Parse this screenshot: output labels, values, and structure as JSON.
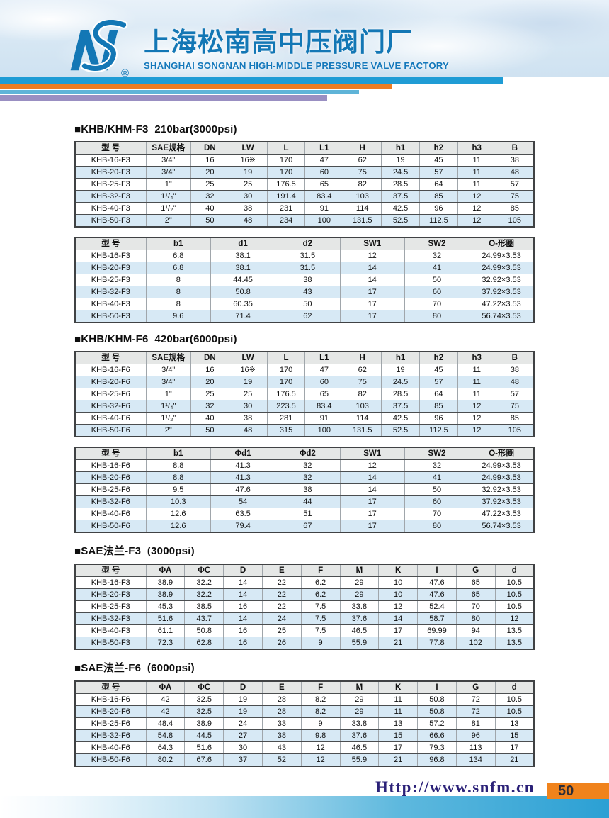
{
  "header": {
    "company_cn": "上海松南高中压阀门厂",
    "company_en": "SHANGHAI SONGNAN HIGH-MIDDLE PRESSURE VALVE FACTORY",
    "logo_monogram": "NS",
    "registered_mark": "®"
  },
  "colors": {
    "brand_blue": "#1377b5",
    "bar_blue": "#1f9cd5",
    "bar_orange": "#ec7d23",
    "bar_lightblue": "#5fb4d8",
    "bar_purple": "#998fc2",
    "table_header_bg": "#e5e7e6",
    "table_alt_row": "#d7e9f5",
    "footer_url_navy": "#2b2178",
    "page_badge_orange": "#f0831c",
    "footer_bar_blue": "#2ba0d4"
  },
  "sections": [
    {
      "title": "■KHB/KHM-F3  210bar(3000psi)",
      "tables": [
        {
          "headers": [
            "型 号",
            "SAE规格",
            "DN",
            "LW",
            "L",
            "L1",
            "H",
            "h1",
            "h2",
            "h3",
            "B"
          ],
          "rows": [
            [
              "KHB-16-F3",
              "3/4\"",
              "16",
              "16※",
              "170",
              "47",
              "62",
              "19",
              "45",
              "11",
              "38"
            ],
            [
              "KHB-20-F3",
              "3/4\"",
              "20",
              "19",
              "170",
              "60",
              "75",
              "24.5",
              "57",
              "11",
              "48"
            ],
            [
              "KHB-25-F3",
              "1\"",
              "25",
              "25",
              "176.5",
              "65",
              "82",
              "28.5",
              "64",
              "11",
              "57"
            ],
            [
              "KHB-32-F3",
              "1¹/₄\"",
              "32",
              "30",
              "191.4",
              "83.4",
              "103",
              "37.5",
              "85",
              "12",
              "75"
            ],
            [
              "KHB-40-F3",
              "1¹/₂\"",
              "40",
              "38",
              "231",
              "91",
              "114",
              "42.5",
              "96",
              "12",
              "85"
            ],
            [
              "KHB-50-F3",
              "2\"",
              "50",
              "48",
              "234",
              "100",
              "131.5",
              "52.5",
              "112.5",
              "12",
              "105"
            ]
          ]
        },
        {
          "headers": [
            "型 号",
            "b1",
            "d1",
            "d2",
            "SW1",
            "SW2",
            "O-形圈"
          ],
          "rows": [
            [
              "KHB-16-F3",
              "6.8",
              "38.1",
              "31.5",
              "12",
              "32",
              "24.99×3.53"
            ],
            [
              "KHB-20-F3",
              "6.8",
              "38.1",
              "31.5",
              "14",
              "41",
              "24.99×3.53"
            ],
            [
              "KHB-25-F3",
              "8",
              "44.45",
              "38",
              "14",
              "50",
              "32.92×3.53"
            ],
            [
              "KHB-32-F3",
              "8",
              "50.8",
              "43",
              "17",
              "60",
              "37.92×3.53"
            ],
            [
              "KHB-40-F3",
              "8",
              "60.35",
              "50",
              "17",
              "70",
              "47.22×3.53"
            ],
            [
              "KHB-50-F3",
              "9.6",
              "71.4",
              "62",
              "17",
              "80",
              "56.74×3.53"
            ]
          ]
        }
      ]
    },
    {
      "title": "■KHB/KHM-F6  420bar(6000psi)",
      "tables": [
        {
          "headers": [
            "型 号",
            "SAE规格",
            "DN",
            "LW",
            "L",
            "L1",
            "H",
            "h1",
            "h2",
            "h3",
            "B"
          ],
          "rows": [
            [
              "KHB-16-F6",
              "3/4\"",
              "16",
              "16※",
              "170",
              "47",
              "62",
              "19",
              "45",
              "11",
              "38"
            ],
            [
              "KHB-20-F6",
              "3/4\"",
              "20",
              "19",
              "170",
              "60",
              "75",
              "24.5",
              "57",
              "11",
              "48"
            ],
            [
              "KHB-25-F6",
              "1\"",
              "25",
              "25",
              "176.5",
              "65",
              "82",
              "28.5",
              "64",
              "11",
              "57"
            ],
            [
              "KHB-32-F6",
              "1¹/₄\"",
              "32",
              "30",
              "223.5",
              "83.4",
              "103",
              "37.5",
              "85",
              "12",
              "75"
            ],
            [
              "KHB-40-F6",
              "1¹/₂\"",
              "40",
              "38",
              "281",
              "91",
              "114",
              "42.5",
              "96",
              "12",
              "85"
            ],
            [
              "KHB-50-F6",
              "2\"",
              "50",
              "48",
              "315",
              "100",
              "131.5",
              "52.5",
              "112.5",
              "12",
              "105"
            ]
          ]
        },
        {
          "headers": [
            "型 号",
            "b1",
            "Φd1",
            "Φd2",
            "SW1",
            "SW2",
            "O-形圈"
          ],
          "rows": [
            [
              "KHB-16-F6",
              "8.8",
              "41.3",
              "32",
              "12",
              "32",
              "24.99×3.53"
            ],
            [
              "KHB-20-F6",
              "8.8",
              "41.3",
              "32",
              "14",
              "41",
              "24.99×3.53"
            ],
            [
              "KHB-25-F6",
              "9.5",
              "47.6",
              "38",
              "14",
              "50",
              "32.92×3.53"
            ],
            [
              "KHB-32-F6",
              "10.3",
              "54",
              "44",
              "17",
              "60",
              "37.92×3.53"
            ],
            [
              "KHB-40-F6",
              "12.6",
              "63.5",
              "51",
              "17",
              "70",
              "47.22×3.53"
            ],
            [
              "KHB-50-F6",
              "12.6",
              "79.4",
              "67",
              "17",
              "80",
              "56.74×3.53"
            ]
          ]
        }
      ]
    },
    {
      "title": "■SAE法兰-F3  (3000psi)",
      "tables": [
        {
          "headers": [
            "型 号",
            "ΦA",
            "ΦC",
            "D",
            "E",
            "F",
            "M",
            "K",
            "I",
            "G",
            "d"
          ],
          "rows": [
            [
              "KHB-16-F3",
              "38.9",
              "32.2",
              "14",
              "22",
              "6.2",
              "29",
              "10",
              "47.6",
              "65",
              "10.5"
            ],
            [
              "KHB-20-F3",
              "38.9",
              "32.2",
              "14",
              "22",
              "6.2",
              "29",
              "10",
              "47.6",
              "65",
              "10.5"
            ],
            [
              "KHB-25-F3",
              "45.3",
              "38.5",
              "16",
              "22",
              "7.5",
              "33.8",
              "12",
              "52.4",
              "70",
              "10.5"
            ],
            [
              "KHB-32-F3",
              "51.6",
              "43.7",
              "14",
              "24",
              "7.5",
              "37.6",
              "14",
              "58.7",
              "80",
              "12"
            ],
            [
              "KHB-40-F3",
              "61.1",
              "50.8",
              "16",
              "25",
              "7.5",
              "46.5",
              "17",
              "69.99",
              "94",
              "13.5"
            ],
            [
              "KHB-50-F3",
              "72.3",
              "62.8",
              "16",
              "26",
              "9",
              "55.9",
              "21",
              "77.8",
              "102",
              "13.5"
            ]
          ]
        }
      ]
    },
    {
      "title": "■SAE法兰-F6  (6000psi)",
      "tables": [
        {
          "headers": [
            "型 号",
            "ΦA",
            "ΦC",
            "D",
            "E",
            "F",
            "M",
            "K",
            "I",
            "G",
            "d"
          ],
          "rows": [
            [
              "KHB-16-F6",
              "42",
              "32.5",
              "19",
              "28",
              "8.2",
              "29",
              "11",
              "50.8",
              "72",
              "10.5"
            ],
            [
              "KHB-20-F6",
              "42",
              "32.5",
              "19",
              "28",
              "8.2",
              "29",
              "11",
              "50.8",
              "72",
              "10.5"
            ],
            [
              "KHB-25-F6",
              "48.4",
              "38.9",
              "24",
              "33",
              "9",
              "33.8",
              "13",
              "57.2",
              "81",
              "13"
            ],
            [
              "KHB-32-F6",
              "54.8",
              "44.5",
              "27",
              "38",
              "9.8",
              "37.6",
              "15",
              "66.6",
              "96",
              "15"
            ],
            [
              "KHB-40-F6",
              "64.3",
              "51.6",
              "30",
              "43",
              "12",
              "46.5",
              "17",
              "79.3",
              "113",
              "17"
            ],
            [
              "KHB-50-F6",
              "80.2",
              "67.6",
              "37",
              "52",
              "12",
              "55.9",
              "21",
              "96.8",
              "134",
              "21"
            ]
          ]
        }
      ]
    }
  ],
  "footer": {
    "url": "Http://www.snfm.cn",
    "page_number": "50"
  }
}
